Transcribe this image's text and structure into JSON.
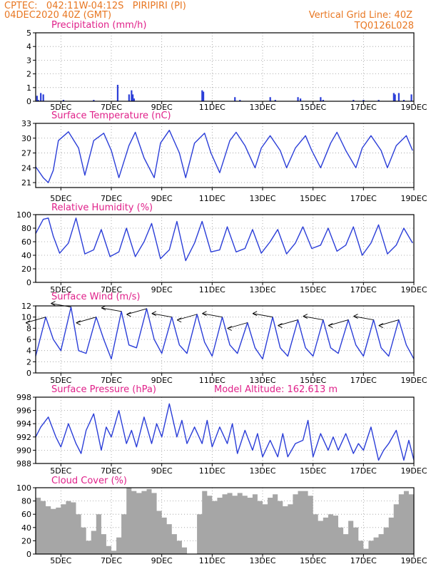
{
  "header": {
    "line1": "CPTEC:   042:11W-04:12S   PIRIPIRI (PI)",
    "line2": "04DEC2020 40Z (GMT)",
    "right1": "Vertical Grid Line: 40Z",
    "right2": "TQ0126L028"
  },
  "colors": {
    "header": "#e87722",
    "panel_title": "#e0218a",
    "series": "#2b3ed8",
    "cloud": "#a6a6a6",
    "wind_arrow": "#000000"
  },
  "x_axis": {
    "tick_labels": [
      "5DEC",
      "7DEC",
      "9DEC",
      "11DEC",
      "13DEC",
      "15DEC",
      "17DEC",
      "19DEC"
    ],
    "tick_days": [
      5,
      7,
      9,
      11,
      13,
      15,
      17,
      19
    ],
    "start_day": 4,
    "end_day": 19,
    "grid": "vertical dotted"
  },
  "chart_data": [
    {
      "type": "bar",
      "title": "Precipitation (mm/h)",
      "ylim": [
        0,
        5
      ],
      "yticks": [
        "0",
        "1",
        "2",
        "3",
        "4",
        "5"
      ],
      "x_days": [
        4.05,
        4.1,
        4.2,
        4.3,
        5.1,
        6.3,
        7.25,
        7.7,
        7.8,
        7.85,
        7.9,
        10.6,
        10.65,
        11.9,
        12.1,
        13.3,
        13.5,
        14.4,
        14.5,
        15.3,
        15.4,
        16.6,
        17.0,
        17.6,
        18.2,
        18.25,
        18.4,
        18.6,
        18.9
      ],
      "values": [
        0.4,
        0.1,
        0.6,
        0.5,
        0.1,
        0.1,
        1.2,
        0.5,
        0.8,
        0.5,
        0.2,
        0.8,
        0.7,
        0.3,
        0.1,
        0.3,
        0.1,
        0.3,
        0.2,
        0.3,
        0.1,
        0.1,
        0.1,
        0.1,
        0.6,
        0.5,
        0.6,
        0.1,
        0.5
      ]
    },
    {
      "type": "line",
      "title": "Surface Temperature (nC)",
      "ylim": [
        20,
        33
      ],
      "yticks": [
        "21",
        "24",
        "27",
        "30",
        "33"
      ],
      "x_days": [
        4.0,
        4.3,
        4.5,
        4.7,
        4.9,
        5.3,
        5.7,
        5.95,
        6.3,
        6.7,
        7.0,
        7.3,
        7.7,
        7.95,
        8.3,
        8.7,
        8.95,
        9.3,
        9.7,
        9.95,
        10.3,
        10.7,
        10.95,
        11.3,
        11.7,
        11.95,
        12.3,
        12.7,
        12.95,
        13.3,
        13.7,
        13.95,
        14.3,
        14.7,
        14.95,
        15.3,
        15.7,
        15.95,
        16.3,
        16.7,
        16.95,
        17.3,
        17.7,
        17.95,
        18.3,
        18.7,
        18.95
      ],
      "series": [
        {
          "values": [
            24.2,
            22.0,
            21.0,
            23.5,
            29.5,
            31.3,
            28.0,
            22.5,
            29.5,
            31.0,
            27.5,
            22.0,
            28.5,
            31.2,
            26.0,
            22.0,
            29.0,
            31.6,
            27.0,
            22.0,
            29.0,
            31.0,
            27.0,
            23.0,
            29.5,
            31.2,
            28.5,
            24.0,
            28.0,
            30.5,
            27.5,
            24.0,
            28.0,
            30.5,
            27.5,
            24.0,
            29.0,
            31.2,
            27.5,
            24.0,
            28.0,
            30.5,
            27.5,
            24.0,
            28.5,
            30.5,
            27.5
          ]
        }
      ]
    },
    {
      "type": "line",
      "title": "Relative Humidity (%)",
      "ylim": [
        0,
        100
      ],
      "yticks": [
        "0",
        "20",
        "40",
        "60",
        "80",
        "100"
      ],
      "x_days": [
        4.0,
        4.3,
        4.5,
        4.7,
        4.95,
        5.3,
        5.6,
        5.95,
        6.3,
        6.6,
        6.95,
        7.3,
        7.6,
        7.95,
        8.3,
        8.6,
        8.95,
        9.3,
        9.6,
        9.95,
        10.3,
        10.6,
        10.95,
        11.3,
        11.6,
        11.95,
        12.3,
        12.6,
        12.95,
        13.3,
        13.6,
        13.95,
        14.3,
        14.6,
        14.95,
        15.3,
        15.6,
        15.95,
        16.3,
        16.6,
        16.95,
        17.3,
        17.6,
        17.95,
        18.3,
        18.6,
        18.95
      ],
      "series": [
        {
          "values": [
            72,
            93,
            95,
            68,
            43,
            58,
            95,
            42,
            48,
            78,
            38,
            45,
            80,
            38,
            60,
            87,
            35,
            48,
            90,
            32,
            58,
            90,
            45,
            48,
            82,
            45,
            50,
            78,
            43,
            60,
            78,
            42,
            58,
            82,
            50,
            55,
            80,
            46,
            55,
            82,
            40,
            58,
            85,
            42,
            55,
            80,
            58
          ]
        }
      ]
    },
    {
      "type": "line",
      "title": "Surface Wind (m/s)",
      "ylim": [
        0,
        12
      ],
      "yticks": [
        "0",
        "2",
        "4",
        "6",
        "8",
        "10",
        "12"
      ],
      "x_days": [
        4.0,
        4.4,
        4.7,
        5.0,
        5.4,
        5.7,
        6.0,
        6.4,
        6.7,
        7.0,
        7.4,
        7.7,
        8.0,
        8.4,
        8.7,
        9.0,
        9.4,
        9.7,
        10.0,
        10.4,
        10.7,
        11.0,
        11.4,
        11.7,
        12.0,
        12.4,
        12.7,
        13.0,
        13.4,
        13.7,
        14.0,
        14.4,
        14.7,
        15.0,
        15.4,
        15.7,
        16.0,
        16.4,
        16.7,
        17.0,
        17.4,
        17.7,
        18.0,
        18.4,
        18.7,
        19.0
      ],
      "series": [
        {
          "values": [
            3.0,
            10.0,
            6.0,
            4.0,
            11.8,
            4.0,
            3.5,
            10.0,
            6.0,
            2.5,
            11.0,
            5.0,
            4.5,
            11.5,
            6.0,
            3.5,
            10.0,
            5.0,
            3.5,
            10.5,
            5.5,
            3.0,
            10.0,
            5.0,
            3.5,
            9.0,
            4.5,
            2.5,
            10.0,
            4.5,
            3.0,
            9.5,
            4.5,
            3.0,
            9.5,
            4.5,
            3.5,
            9.5,
            5.0,
            3.0,
            9.5,
            4.5,
            3.0,
            9.5,
            5.0,
            2.5
          ]
        }
      ],
      "arrows": "wind direction vectors drawn along the series"
    },
    {
      "type": "line",
      "title": "Surface Pressure (hPa)",
      "annotation": "Model Altitude: 162.613 m",
      "ylim": [
        988,
        998
      ],
      "yticks": [
        "988",
        "990",
        "992",
        "994",
        "996",
        "998"
      ],
      "x_days": [
        4.0,
        4.2,
        4.5,
        4.8,
        5.0,
        5.3,
        5.6,
        5.8,
        6.0,
        6.3,
        6.6,
        6.8,
        7.0,
        7.3,
        7.6,
        7.8,
        8.0,
        8.3,
        8.6,
        8.8,
        9.0,
        9.3,
        9.6,
        9.8,
        10.0,
        10.3,
        10.6,
        10.8,
        11.0,
        11.3,
        11.6,
        11.8,
        12.0,
        12.3,
        12.6,
        12.8,
        13.0,
        13.3,
        13.6,
        13.8,
        14.0,
        14.3,
        14.6,
        14.8,
        15.0,
        15.3,
        15.6,
        15.8,
        16.0,
        16.3,
        16.6,
        16.8,
        17.0,
        17.3,
        17.6,
        17.8,
        18.0,
        18.3,
        18.6,
        18.8,
        19.0
      ],
      "series": [
        {
          "values": [
            992.0,
            993.5,
            995.0,
            992.0,
            990.5,
            994.0,
            991.0,
            989.5,
            993.0,
            995.5,
            990.0,
            993.5,
            992.0,
            996.0,
            991.0,
            993.0,
            990.5,
            995.0,
            991.0,
            994.0,
            992.0,
            997.0,
            992.0,
            994.5,
            991.0,
            993.5,
            991.0,
            994.5,
            990.5,
            993.5,
            991.0,
            994.0,
            989.5,
            993.0,
            990.0,
            992.5,
            989.0,
            991.5,
            989.0,
            992.5,
            989.0,
            991.0,
            991.5,
            994.5,
            989.0,
            992.5,
            990.0,
            992.0,
            990.0,
            992.5,
            989.5,
            991.0,
            990.0,
            993.5,
            988.5,
            990.0,
            991.0,
            993.0,
            988.5,
            991.5,
            988.5
          ]
        }
      ]
    },
    {
      "type": "area",
      "title": "Cloud Cover (%)",
      "ylim": [
        0,
        100
      ],
      "yticks": [
        "0",
        "20",
        "40",
        "60",
        "80",
        "100"
      ],
      "x_days": [
        4.0,
        4.2,
        4.4,
        4.6,
        4.8,
        5.0,
        5.2,
        5.4,
        5.6,
        5.8,
        6.0,
        6.2,
        6.4,
        6.6,
        6.8,
        7.0,
        7.2,
        7.4,
        7.6,
        7.8,
        8.0,
        8.2,
        8.4,
        8.6,
        8.8,
        9.0,
        9.2,
        9.4,
        9.6,
        9.8,
        10.0,
        10.2,
        10.4,
        10.6,
        10.8,
        11.0,
        11.2,
        11.4,
        11.6,
        11.8,
        12.0,
        12.2,
        12.4,
        12.6,
        12.8,
        13.0,
        13.2,
        13.4,
        13.6,
        13.8,
        14.0,
        14.2,
        14.4,
        14.6,
        14.8,
        15.0,
        15.2,
        15.4,
        15.6,
        15.8,
        16.0,
        16.2,
        16.4,
        16.6,
        16.8,
        17.0,
        17.2,
        17.4,
        17.6,
        17.8,
        18.0,
        18.2,
        18.4,
        18.6,
        18.8,
        19.0
      ],
      "series": [
        {
          "values": [
            85,
            80,
            72,
            68,
            70,
            75,
            80,
            78,
            60,
            40,
            20,
            35,
            60,
            30,
            12,
            5,
            25,
            60,
            100,
            95,
            92,
            95,
            98,
            92,
            65,
            55,
            45,
            30,
            20,
            10,
            0,
            0,
            60,
            95,
            88,
            80,
            85,
            90,
            92,
            88,
            92,
            88,
            85,
            90,
            80,
            75,
            85,
            90,
            80,
            72,
            75,
            90,
            95,
            95,
            88,
            60,
            50,
            55,
            60,
            58,
            40,
            30,
            50,
            40,
            20,
            8,
            20,
            25,
            30,
            40,
            55,
            75,
            90,
            95,
            90,
            88
          ]
        }
      ]
    }
  ]
}
